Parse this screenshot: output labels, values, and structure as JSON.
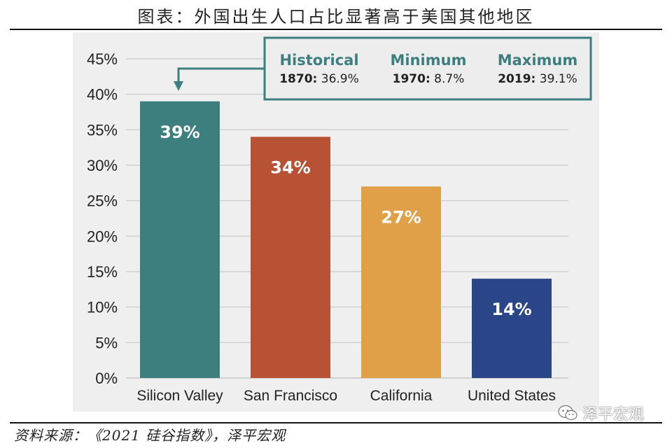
{
  "figure_title": "图表：外国出生人口占比显著高于美国其他地区",
  "source_note": "资料来源：《2021 硅谷指数》，泽平宏观",
  "watermark": "泽平宏观",
  "chart_data": {
    "type": "bar",
    "title": "",
    "xlabel": "",
    "ylabel": "",
    "categories": [
      "Silicon Valley",
      "San Francisco",
      "California",
      "United States"
    ],
    "values": [
      39,
      34,
      27,
      14
    ],
    "value_labels": [
      "39%",
      "34%",
      "27%",
      "14%"
    ],
    "colors": [
      "#3d7f7f",
      "#b85235",
      "#e0a048",
      "#2b4589"
    ],
    "ylim": [
      0,
      45
    ],
    "yticks": [
      0,
      5,
      10,
      15,
      20,
      25,
      30,
      35,
      40,
      45
    ],
    "ytick_labels": [
      "0%",
      "5%",
      "10%",
      "15%",
      "20%",
      "25%",
      "30%",
      "35%",
      "40%",
      "45%"
    ],
    "grid": true,
    "callout": {
      "border_color": "#3d7f7f",
      "heading_color": "#3d7f7f",
      "points_to": "Silicon Valley",
      "items": [
        {
          "heading": "Historical",
          "year": "1870:",
          "value": "36.9%"
        },
        {
          "heading": "Minimum",
          "year": "1970:",
          "value": "8.7%"
        },
        {
          "heading": "Maximum",
          "year": "2019:",
          "value": "39.1%"
        }
      ]
    }
  }
}
